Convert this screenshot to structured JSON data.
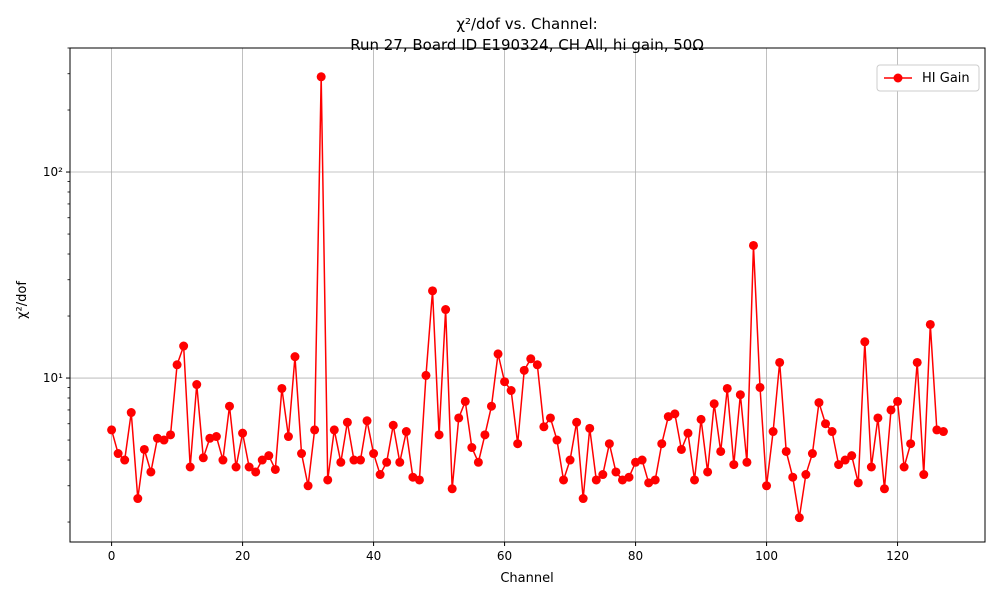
{
  "chart_data": {
    "type": "line",
    "title_line1": "χ²/dof vs. Channel:",
    "title_line2": "Run 27, Board ID E190324, CH All, hi gain, 50Ω",
    "xlabel": "Channel",
    "ylabel": "χ²/dof",
    "xlim": [
      -6.35,
      133.35
    ],
    "ylim": [
      1.6,
      400
    ],
    "yscale": "log",
    "grid": true,
    "legend_position": "top-right",
    "x_ticks": [
      0,
      20,
      40,
      60,
      80,
      100,
      120
    ],
    "x_tick_labels": [
      "0",
      "20",
      "40",
      "60",
      "80",
      "100",
      "120"
    ],
    "y_major_ticks": [
      10,
      100
    ],
    "y_major_tick_labels": [
      "10¹",
      "10²"
    ],
    "series": [
      {
        "name": "HI Gain",
        "color": "#ff0000",
        "marker": "circle",
        "x": [
          0,
          1,
          2,
          3,
          4,
          5,
          6,
          7,
          8,
          9,
          10,
          11,
          12,
          13,
          14,
          15,
          16,
          17,
          18,
          19,
          20,
          21,
          22,
          23,
          24,
          25,
          26,
          27,
          28,
          29,
          30,
          31,
          32,
          33,
          34,
          35,
          36,
          37,
          38,
          39,
          40,
          41,
          42,
          43,
          44,
          45,
          46,
          47,
          48,
          49,
          50,
          51,
          52,
          53,
          54,
          55,
          56,
          57,
          58,
          59,
          60,
          61,
          62,
          63,
          64,
          65,
          66,
          67,
          68,
          69,
          70,
          71,
          72,
          73,
          74,
          75,
          76,
          77,
          78,
          79,
          80,
          81,
          82,
          83,
          84,
          85,
          86,
          87,
          88,
          89,
          90,
          91,
          92,
          93,
          94,
          95,
          96,
          97,
          98,
          99,
          100,
          101,
          102,
          103,
          104,
          105,
          106,
          107,
          108,
          109,
          110,
          111,
          112,
          113,
          114,
          115,
          116,
          117,
          118,
          119,
          120,
          121,
          122,
          123,
          124,
          125,
          126,
          127
        ],
        "y": [
          5.6,
          4.3,
          4.0,
          6.8,
          2.6,
          4.5,
          3.5,
          5.1,
          5.0,
          5.3,
          11.6,
          14.3,
          3.7,
          9.3,
          4.1,
          5.1,
          5.2,
          4.0,
          7.3,
          3.7,
          5.4,
          3.7,
          3.5,
          4.0,
          4.2,
          3.6,
          8.9,
          5.2,
          12.7,
          4.3,
          3.0,
          5.6,
          290,
          3.2,
          5.6,
          3.9,
          6.1,
          4.0,
          4.0,
          6.2,
          4.3,
          3.4,
          3.9,
          5.9,
          3.9,
          5.5,
          3.3,
          3.2,
          10.3,
          26.5,
          5.3,
          21.5,
          2.9,
          6.4,
          7.7,
          4.6,
          3.9,
          5.3,
          7.3,
          13.1,
          9.6,
          8.7,
          4.8,
          10.9,
          12.4,
          11.6,
          5.8,
          6.4,
          5.0,
          3.2,
          4.0,
          6.1,
          2.6,
          5.7,
          3.2,
          3.4,
          4.8,
          3.5,
          3.2,
          3.3,
          3.9,
          4.0,
          3.1,
          3.2,
          4.8,
          6.5,
          6.7,
          4.5,
          5.4,
          3.2,
          6.3,
          3.5,
          7.5,
          4.4,
          8.9,
          3.8,
          8.3,
          3.9,
          44.0,
          9.0,
          3.0,
          5.5,
          11.9,
          4.4,
          3.3,
          2.1,
          3.4,
          4.3,
          7.6,
          6.0,
          5.5,
          3.8,
          4.0,
          4.2,
          3.1,
          15.0,
          3.7,
          6.4,
          2.9,
          7.0,
          7.7,
          3.7,
          4.8,
          11.9,
          3.4,
          18.2,
          5.6,
          5.5
        ]
      }
    ]
  }
}
